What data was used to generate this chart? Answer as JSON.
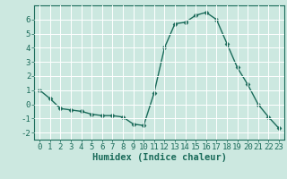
{
  "x": [
    0,
    1,
    2,
    3,
    4,
    5,
    6,
    7,
    8,
    9,
    10,
    11,
    12,
    13,
    14,
    15,
    16,
    17,
    18,
    19,
    20,
    21,
    22,
    23
  ],
  "y": [
    1.0,
    0.4,
    -0.3,
    -0.4,
    -0.5,
    -0.7,
    -0.8,
    -0.8,
    -0.9,
    -1.4,
    -1.5,
    0.8,
    4.0,
    5.7,
    5.8,
    6.3,
    6.5,
    6.0,
    4.3,
    2.6,
    1.4,
    0.0,
    -0.9,
    -1.7
  ],
  "line_color": "#1a6b5a",
  "marker": "D",
  "marker_size": 2.5,
  "bg_color": "#cce8e0",
  "grid_color": "#ffffff",
  "xlabel": "Humidex (Indice chaleur)",
  "ylim": [
    -2.5,
    7.0
  ],
  "xlim": [
    -0.5,
    23.5
  ],
  "yticks": [
    -2,
    -1,
    0,
    1,
    2,
    3,
    4,
    5,
    6
  ],
  "xticks": [
    0,
    1,
    2,
    3,
    4,
    5,
    6,
    7,
    8,
    9,
    10,
    11,
    12,
    13,
    14,
    15,
    16,
    17,
    18,
    19,
    20,
    21,
    22,
    23
  ],
  "tick_color": "#1a6b5a",
  "label_fontsize": 7.5,
  "tick_fontsize": 6.5,
  "linewidth": 1.0
}
